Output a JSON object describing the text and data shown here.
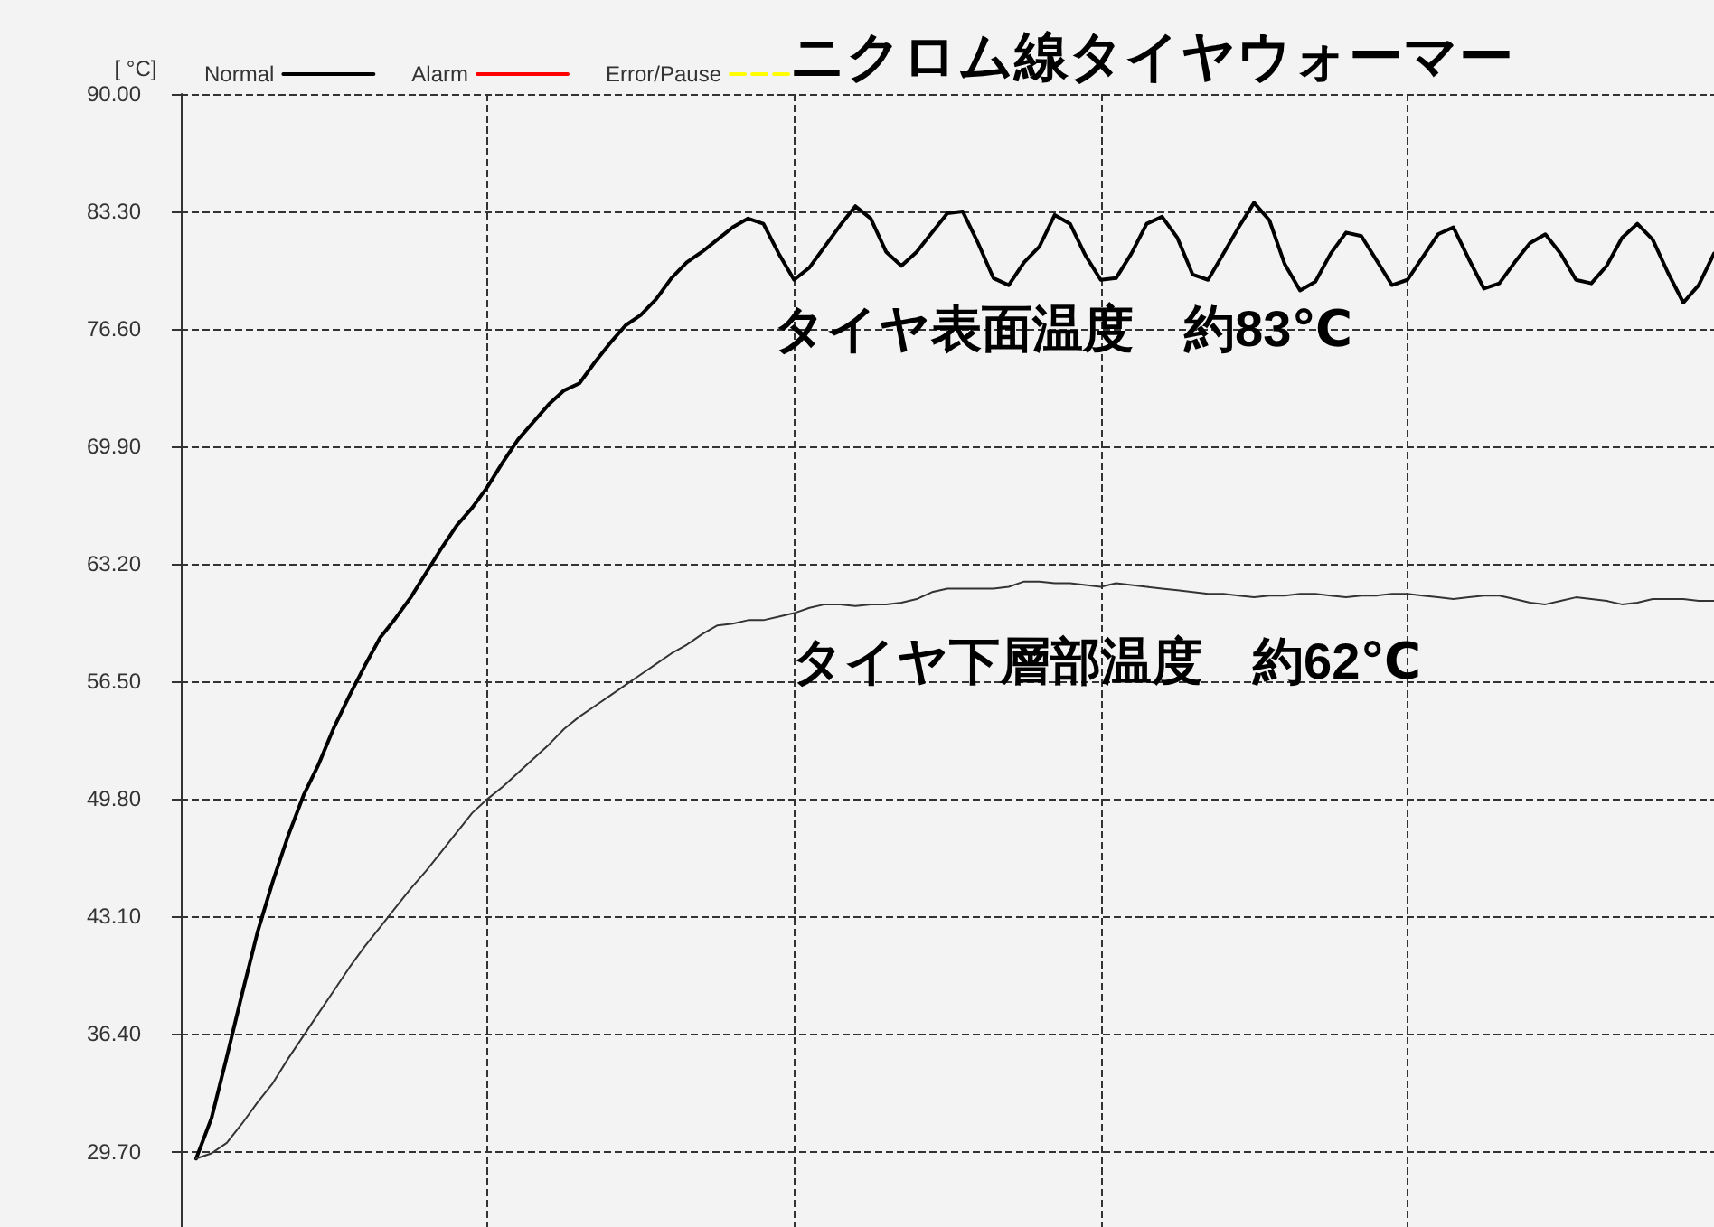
{
  "chart_data": {
    "type": "line",
    "title": "ニクロム線タイヤウォーマー",
    "ylabel": "[ °C]",
    "annotations": [
      "タイヤ表面温度　約83℃",
      "タイヤ下層部温度　約62℃"
    ],
    "categories": [
      null,
      null,
      null,
      null,
      null,
      null,
      null,
      null,
      null,
      null,
      null,
      null,
      null,
      null,
      null,
      null,
      null,
      null,
      null,
      null,
      null,
      null,
      null,
      null,
      null,
      null,
      null,
      null,
      null,
      null,
      null,
      null,
      null,
      null,
      null,
      null,
      null,
      null,
      null,
      null,
      null,
      null,
      null,
      null,
      null,
      null,
      null,
      null,
      null,
      null,
      null,
      null,
      null,
      null,
      null,
      null,
      null,
      null,
      null,
      null,
      null,
      null,
      null,
      null,
      null,
      null,
      null,
      null,
      null,
      null,
      null,
      null,
      null,
      null,
      null,
      null,
      null,
      null,
      null,
      null,
      null,
      null,
      null,
      null,
      null,
      null,
      null,
      null,
      null,
      null,
      null,
      null,
      null,
      null,
      null,
      null,
      null,
      null,
      null,
      null,
      null
    ],
    "ylim": [
      25.4,
      90
    ],
    "yticks": [
      {
        "value": 29.7,
        "label": "29.70"
      },
      {
        "value": 36.4,
        "label": "36.40"
      },
      {
        "value": 43.1,
        "label": "43.10"
      },
      {
        "value": 49.8,
        "label": "49.80"
      },
      {
        "value": 56.5,
        "label": "56.50"
      },
      {
        "value": 63.2,
        "label": "63.20"
      },
      {
        "value": 69.9,
        "label": "69.90"
      },
      {
        "value": 76.6,
        "label": "76.60"
      },
      {
        "value": 83.3,
        "label": "83.30"
      },
      {
        "value": 90,
        "label": "90.00"
      }
    ],
    "tick_labels": "y",
    "grid": true,
    "legend": "top left",
    "series": [
      {
        "name": "Normal",
        "color": "#000000",
        "line_style": "solid",
        "values": [
          null,
          29.3,
          31.6,
          35.1,
          38.7,
          42.2,
          45.1,
          47.7,
          50.0,
          51.8,
          53.9,
          55.7,
          57.4,
          59.0,
          60.1,
          61.3,
          62.7,
          64.1,
          65.4,
          66.4,
          67.6,
          69.0,
          70.3,
          71.3,
          72.3,
          73.1,
          73.5,
          74.7,
          75.8,
          76.8,
          77.4,
          78.3,
          79.5,
          80.4,
          81.0,
          81.7,
          82.4,
          82.9,
          82.6,
          80.9,
          79.4,
          80.1,
          81.3,
          82.5,
          83.6,
          82.9,
          81.0,
          80.2,
          81.0,
          82.1,
          83.2,
          83.3,
          81.5,
          79.5,
          79.1,
          80.4,
          81.3,
          83.1,
          82.6,
          80.8,
          79.4,
          79.5,
          80.9,
          82.6,
          83.0,
          81.8,
          79.7,
          79.4,
          80.9,
          82.4,
          83.8,
          82.8,
          80.3,
          78.8,
          79.3,
          80.9,
          82.1,
          81.9,
          80.5,
          79.1,
          79.4,
          80.7,
          82.0,
          82.4,
          80.6,
          78.9,
          79.2,
          80.4,
          81.5,
          82.0,
          80.9,
          79.4,
          79.2,
          80.2,
          81.8,
          82.6,
          81.7,
          79.8,
          78.1,
          79.1,
          80.9
        ]
      },
      {
        "color": "#333333",
        "line_style": "solid",
        "values": [
          null,
          29.3,
          29.6,
          30.2,
          31.3,
          32.5,
          33.6,
          35.0,
          36.3,
          37.6,
          38.9,
          40.2,
          41.4,
          42.5,
          43.6,
          44.7,
          45.7,
          46.8,
          47.9,
          49.0,
          49.8,
          50.5,
          51.3,
          52.1,
          52.9,
          53.8,
          54.5,
          55.1,
          55.7,
          56.3,
          56.9,
          57.5,
          58.1,
          58.6,
          59.2,
          59.7,
          59.8,
          60.0,
          60.0,
          60.2,
          60.4,
          60.7,
          60.9,
          60.9,
          60.8,
          60.9,
          60.9,
          61.0,
          61.2,
          61.6,
          61.8,
          61.8,
          61.8,
          61.8,
          61.9,
          62.2,
          62.2,
          62.1,
          62.1,
          62.0,
          61.9,
          62.1,
          62.0,
          61.9,
          61.8,
          61.7,
          61.6,
          61.5,
          61.5,
          61.4,
          61.3,
          61.4,
          61.4,
          61.5,
          61.5,
          61.4,
          61.3,
          61.4,
          61.4,
          61.5,
          61.5,
          61.4,
          61.3,
          61.2,
          61.3,
          61.4,
          61.4,
          61.2,
          61.0,
          60.9,
          61.1,
          61.3,
          61.2,
          61.1,
          60.9,
          61.0,
          61.2,
          61.2,
          61.2,
          61.1,
          61.1
        ]
      },
      {
        "name": "Alarm",
        "color": "#ff0000",
        "line_style": "solid",
        "values": [
          null,
          null,
          null,
          null,
          null,
          null,
          null,
          null,
          null,
          null,
          null,
          null,
          null,
          null,
          null,
          null,
          null,
          null,
          null,
          null,
          null,
          null,
          null,
          null,
          null,
          null,
          null,
          null,
          null,
          null,
          null,
          null,
          null,
          null,
          null,
          null,
          null,
          null,
          null,
          null,
          null,
          null,
          null,
          null,
          null,
          null,
          null,
          null,
          null,
          null,
          null,
          null,
          null,
          null,
          null,
          null,
          null,
          null,
          null,
          null,
          null,
          null,
          null,
          null,
          null,
          null,
          null,
          null,
          null,
          null,
          null,
          null,
          null,
          null,
          null,
          null,
          null,
          null,
          null,
          null,
          null,
          null,
          null,
          null,
          null,
          null,
          null,
          null,
          null,
          null,
          null,
          null,
          null,
          null,
          null,
          null,
          null,
          null,
          null,
          null,
          null
        ]
      },
      {
        "name": "Error/Pause",
        "color": "#ffff00",
        "line_style": "dashed",
        "values": [
          null,
          null,
          null,
          null,
          null,
          null,
          null,
          null,
          null,
          null,
          null,
          null,
          null,
          null,
          null,
          null,
          null,
          null,
          null,
          null,
          null,
          null,
          null,
          null,
          null,
          null,
          null,
          null,
          null,
          null,
          null,
          null,
          null,
          null,
          null,
          null,
          null,
          null,
          null,
          null,
          null,
          null,
          null,
          null,
          null,
          null,
          null,
          null,
          null,
          null,
          null,
          null,
          null,
          null,
          null,
          null,
          null,
          null,
          null,
          null,
          null,
          null,
          null,
          null,
          null,
          null,
          null,
          null,
          null,
          null,
          null,
          null,
          null,
          null,
          null,
          null,
          null,
          null,
          null,
          null,
          null,
          null,
          null,
          null,
          null,
          null,
          null,
          null,
          null,
          null,
          null,
          null,
          null,
          null,
          null,
          null,
          null,
          null,
          null,
          null,
          null
        ]
      }
    ]
  }
}
